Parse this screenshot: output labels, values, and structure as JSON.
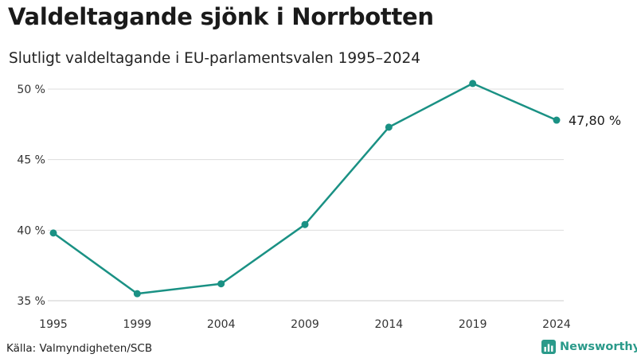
{
  "header": {
    "title": "Valdeltagande sjönk i Norrbotten",
    "subtitle": "Slutligt valdeltagande i EU-parlamentsvalen 1995–2024"
  },
  "footer": {
    "source": "Källa: Valmyndigheten/SCB",
    "brand": "Newsworthy"
  },
  "colors": {
    "line": "#1a9184",
    "grid": "#dddddd",
    "brand": "#2a9a8a"
  },
  "chart_data": {
    "type": "line",
    "title": "Valdeltagande sjönk i Norrbotten",
    "subtitle": "Slutligt valdeltagande i EU-parlamentsvalen 1995–2024",
    "xlabel": "",
    "ylabel": "",
    "x": [
      "1995",
      "1999",
      "2004",
      "2009",
      "2014",
      "2019",
      "2024"
    ],
    "series": [
      {
        "name": "Valdeltagande (%)",
        "values": [
          39.8,
          35.5,
          36.2,
          40.4,
          47.3,
          50.4,
          47.8
        ]
      }
    ],
    "ylim": [
      35,
      50
    ],
    "yticks": [
      35,
      40,
      45,
      50
    ],
    "ytick_labels": [
      "35 %",
      "40 %",
      "45 %",
      "50 %"
    ],
    "end_label": "47,80 %",
    "grid": true,
    "legend": "none"
  }
}
